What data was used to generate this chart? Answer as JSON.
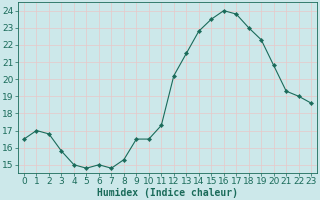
{
  "x": [
    0,
    1,
    2,
    3,
    4,
    5,
    6,
    7,
    8,
    9,
    10,
    11,
    12,
    13,
    14,
    15,
    16,
    17,
    18,
    19,
    20,
    21,
    22,
    23
  ],
  "y": [
    16.5,
    17.0,
    16.8,
    15.8,
    15.0,
    14.8,
    15.0,
    14.8,
    15.3,
    16.5,
    16.5,
    17.3,
    20.2,
    21.5,
    22.8,
    23.5,
    24.0,
    23.8,
    23.0,
    22.3,
    20.8,
    19.3,
    19.0,
    18.6
  ],
  "line_color": "#1a6b5a",
  "marker": "D",
  "marker_size": 2.2,
  "bg_color": "#cce8ea",
  "grid_color": "#e8c8c8",
  "xlabel": "Humidex (Indice chaleur)",
  "ylabel_ticks": [
    15,
    16,
    17,
    18,
    19,
    20,
    21,
    22,
    23,
    24
  ],
  "xlim": [
    -0.5,
    23.5
  ],
  "ylim": [
    14.5,
    24.5
  ],
  "xlabel_fontsize": 7,
  "tick_fontsize": 6.5
}
